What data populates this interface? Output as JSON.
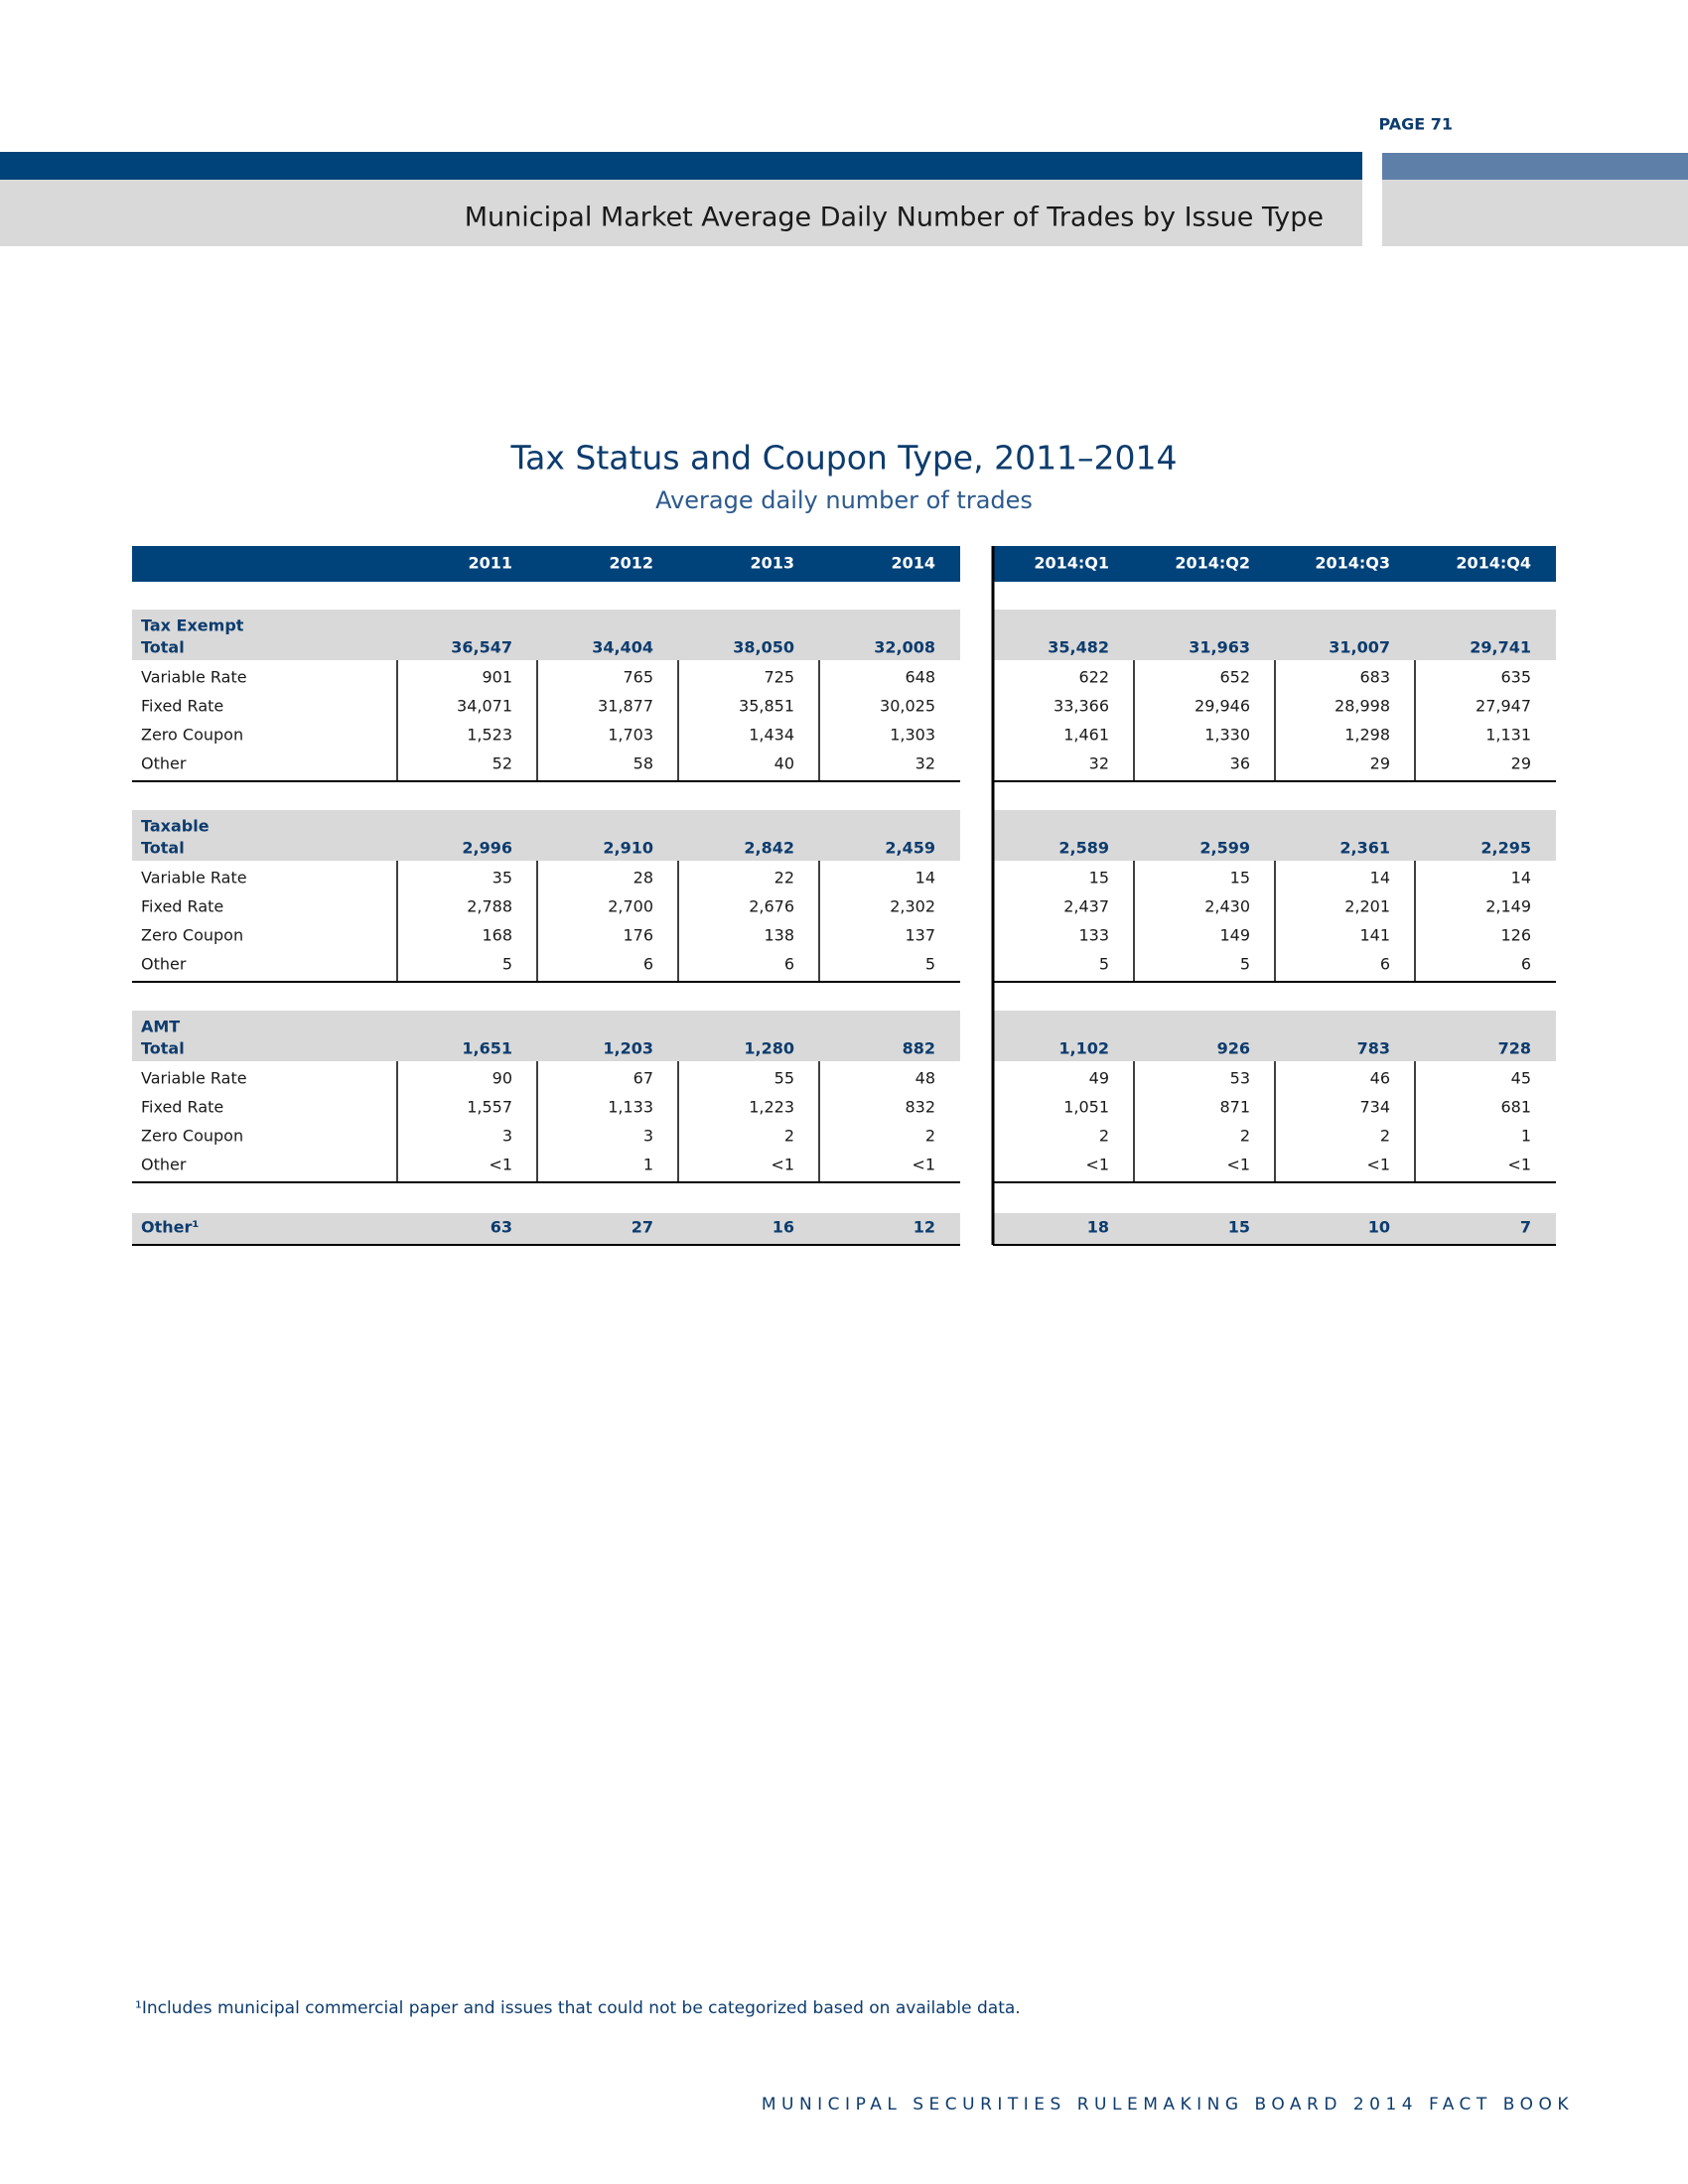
{
  "header": {
    "page": "PAGE 71",
    "title": "Municipal Market Average Daily Number of Trades by Issue Type"
  },
  "table": {
    "title": "Tax Status and Coupon Type, 2011–2014",
    "subtitle": "Average daily number of trades",
    "columns": [
      "2011",
      "2012",
      "2013",
      "2014",
      "2014:Q1",
      "2014:Q2",
      "2014:Q3",
      "2014:Q4"
    ],
    "groups": [
      {
        "name": "Tax Exempt",
        "total_label": "Total",
        "total": [
          "36,547",
          "34,404",
          "38,050",
          "32,008",
          "35,482",
          "31,963",
          "31,007",
          "29,741"
        ],
        "rows": [
          {
            "label": "Variable Rate",
            "values": [
              "901",
              "765",
              "725",
              "648",
              "622",
              "652",
              "683",
              "635"
            ]
          },
          {
            "label": "Fixed Rate",
            "values": [
              "34,071",
              "31,877",
              "35,851",
              "30,025",
              "33,366",
              "29,946",
              "28,998",
              "27,947"
            ]
          },
          {
            "label": "Zero Coupon",
            "values": [
              "1,523",
              "1,703",
              "1,434",
              "1,303",
              "1,461",
              "1,330",
              "1,298",
              "1,131"
            ]
          },
          {
            "label": "Other",
            "values": [
              "52",
              "58",
              "40",
              "32",
              "32",
              "36",
              "29",
              "29"
            ]
          }
        ]
      },
      {
        "name": "Taxable",
        "total_label": "Total",
        "total": [
          "2,996",
          "2,910",
          "2,842",
          "2,459",
          "2,589",
          "2,599",
          "2,361",
          "2,295"
        ],
        "rows": [
          {
            "label": "Variable Rate",
            "values": [
              "35",
              "28",
              "22",
              "14",
              "15",
              "15",
              "14",
              "14"
            ]
          },
          {
            "label": "Fixed Rate",
            "values": [
              "2,788",
              "2,700",
              "2,676",
              "2,302",
              "2,437",
              "2,430",
              "2,201",
              "2,149"
            ]
          },
          {
            "label": "Zero Coupon",
            "values": [
              "168",
              "176",
              "138",
              "137",
              "133",
              "149",
              "141",
              "126"
            ]
          },
          {
            "label": "Other",
            "values": [
              "5",
              "6",
              "6",
              "5",
              "5",
              "5",
              "6",
              "6"
            ]
          }
        ]
      },
      {
        "name": "AMT",
        "total_label": "Total",
        "total": [
          "1,651",
          "1,203",
          "1,280",
          "882",
          "1,102",
          "926",
          "783",
          "728"
        ],
        "rows": [
          {
            "label": "Variable Rate",
            "values": [
              "90",
              "67",
              "55",
              "48",
              "49",
              "53",
              "46",
              "45"
            ]
          },
          {
            "label": "Fixed Rate",
            "values": [
              "1,557",
              "1,133",
              "1,223",
              "832",
              "1,051",
              "871",
              "734",
              "681"
            ]
          },
          {
            "label": "Zero Coupon",
            "values": [
              "3",
              "3",
              "2",
              "2",
              "2",
              "2",
              "2",
              "1"
            ]
          },
          {
            "label": "Other",
            "values": [
              "<1",
              "1",
              "<1",
              "<1",
              "<1",
              "<1",
              "<1",
              "<1"
            ]
          }
        ]
      }
    ],
    "other_row": {
      "label": "Other¹",
      "values": [
        "63",
        "27",
        "16",
        "12",
        "18",
        "15",
        "10",
        "7"
      ]
    }
  },
  "footnote": "¹Includes municipal commercial paper and issues that could not be categorized based on available data.",
  "footer": "MUNICIPAL SECURITIES RULEMAKING BOARD 2014 FACT BOOK"
}
